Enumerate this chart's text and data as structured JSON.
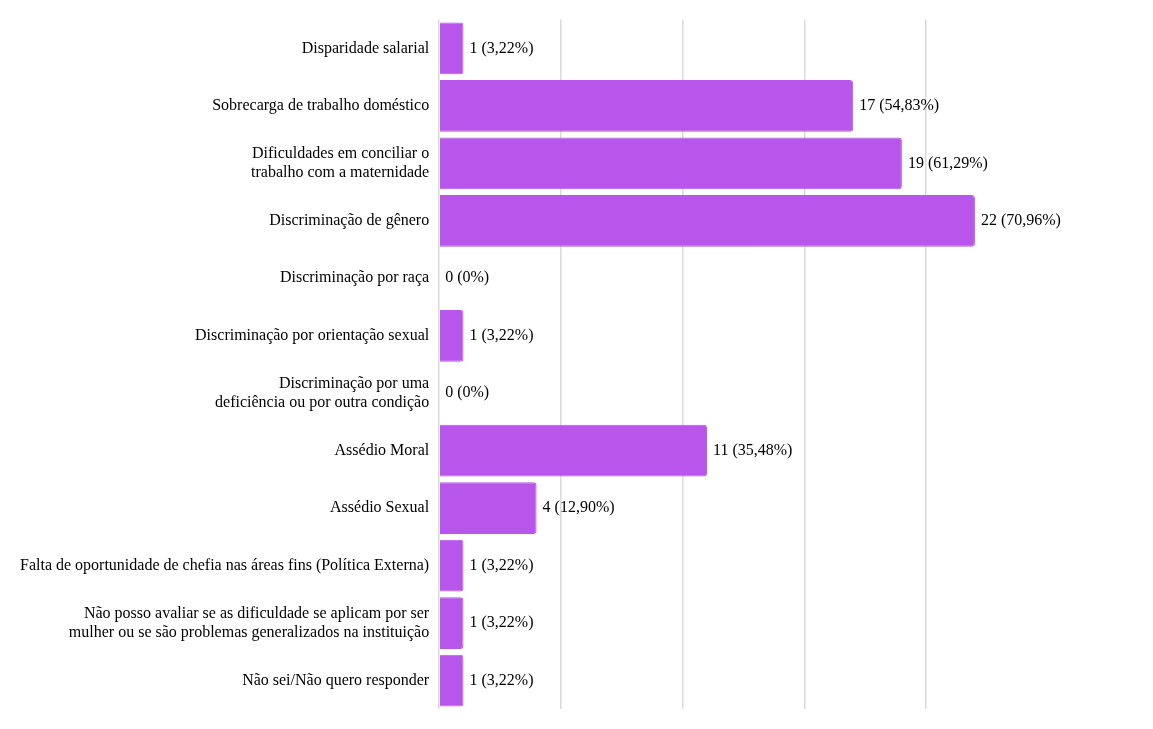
{
  "chart_data": {
    "type": "bar",
    "orientation": "horizontal",
    "categories": [
      "Disparidade salarial",
      "Sobrecarga de trabalho doméstico",
      "Dificuldades em conciliar o\ntrabalho com a maternidade",
      "Discriminação de gênero",
      "Discriminação por raça",
      "Discriminação por orientação sexual",
      "Discriminação por uma\ndeficiência ou por outra condição",
      "Assédio Moral",
      "Assédio Sexual",
      "Falta de oportunidade de chefia nas áreas fins (Política Externa)",
      "Não posso avaliar se as dificuldade se aplicam por ser\nmulher ou se são problemas generalizados na instituição",
      "Não sei/Não quero responder"
    ],
    "values": [
      1,
      17,
      19,
      22,
      0,
      1,
      0,
      11,
      4,
      1,
      1,
      1
    ],
    "value_labels": [
      "1 (3,22%)",
      "17 (54,83%)",
      "19 (61,29%)",
      "22 (70,96%)",
      "0 (0%)",
      "1 (3,22%)",
      "0 (0%)",
      "11 (35,48%)",
      "4 (12,90%)",
      "1 (3,22%)",
      "1 (3,22%)",
      "1 (3,22%)"
    ],
    "color": "#b855ea",
    "xticks": [
      {
        "value": 0,
        "label": null
      },
      {
        "value": 5,
        "label": null
      },
      {
        "value": 10,
        "label": null
      },
      {
        "value": 15,
        "label": null
      },
      {
        "value": 20,
        "label": null
      }
    ],
    "tick_labels": "y",
    "grid": "x",
    "legend": false
  }
}
